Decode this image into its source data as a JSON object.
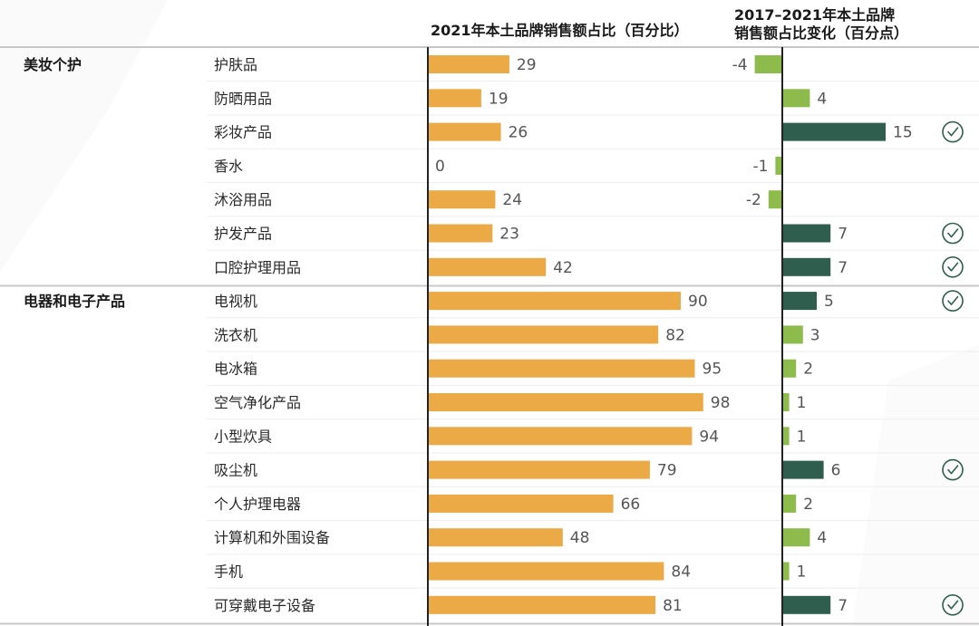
{
  "chart_data": {
    "type": "bar",
    "headers": {
      "share_title": "2021年本土品牌销售额占比（百分比）",
      "change_title_line1": "2017–2021年本土品牌",
      "change_title_line2": "销售额占比变化（百分点）"
    },
    "groups": [
      {
        "name": "美妆个护",
        "items": [
          {
            "label": "护肤品",
            "share": 29,
            "change": -4,
            "highlight": false
          },
          {
            "label": "防晒用品",
            "share": 19,
            "change": 4,
            "highlight": false
          },
          {
            "label": "彩妆产品",
            "share": 26,
            "change": 15,
            "highlight": true
          },
          {
            "label": "香水",
            "share": 0,
            "change": -1,
            "highlight": false
          },
          {
            "label": "沐浴用品",
            "share": 24,
            "change": -2,
            "highlight": false
          },
          {
            "label": "护发产品",
            "share": 23,
            "change": 7,
            "highlight": true
          },
          {
            "label": "口腔护理用品",
            "share": 42,
            "change": 7,
            "highlight": true
          }
        ]
      },
      {
        "name": "电器和电子产品",
        "items": [
          {
            "label": "电视机",
            "share": 90,
            "change": 5,
            "highlight": true
          },
          {
            "label": "洗衣机",
            "share": 82,
            "change": 3,
            "highlight": false
          },
          {
            "label": "电冰箱",
            "share": 95,
            "change": 2,
            "highlight": false
          },
          {
            "label": "空气净化产品",
            "share": 98,
            "change": 1,
            "highlight": false
          },
          {
            "label": "小型炊具",
            "share": 94,
            "change": 1,
            "highlight": false
          },
          {
            "label": "吸尘机",
            "share": 79,
            "change": 6,
            "highlight": true
          },
          {
            "label": "个人护理电器",
            "share": 66,
            "change": 2,
            "highlight": false
          },
          {
            "label": "计算机和外围设备",
            "share": 48,
            "change": 4,
            "highlight": false
          },
          {
            "label": "手机",
            "share": 84,
            "change": 1,
            "highlight": false
          },
          {
            "label": "可穿戴电子设备",
            "share": 81,
            "change": 7,
            "highlight": true
          }
        ]
      }
    ],
    "share_axis": {
      "min": 0,
      "max": 100
    },
    "change_axis": {
      "min": -5,
      "max": 15
    },
    "colors": {
      "share_bar": "#EBAA45",
      "change_positive": "#8DBB4C",
      "change_highlight": "#2F5E4E",
      "change_negative": "#8DBB4C",
      "check_icon": "#2F5E4E",
      "axis": "#222222",
      "separator": "#c8c8c8"
    }
  }
}
